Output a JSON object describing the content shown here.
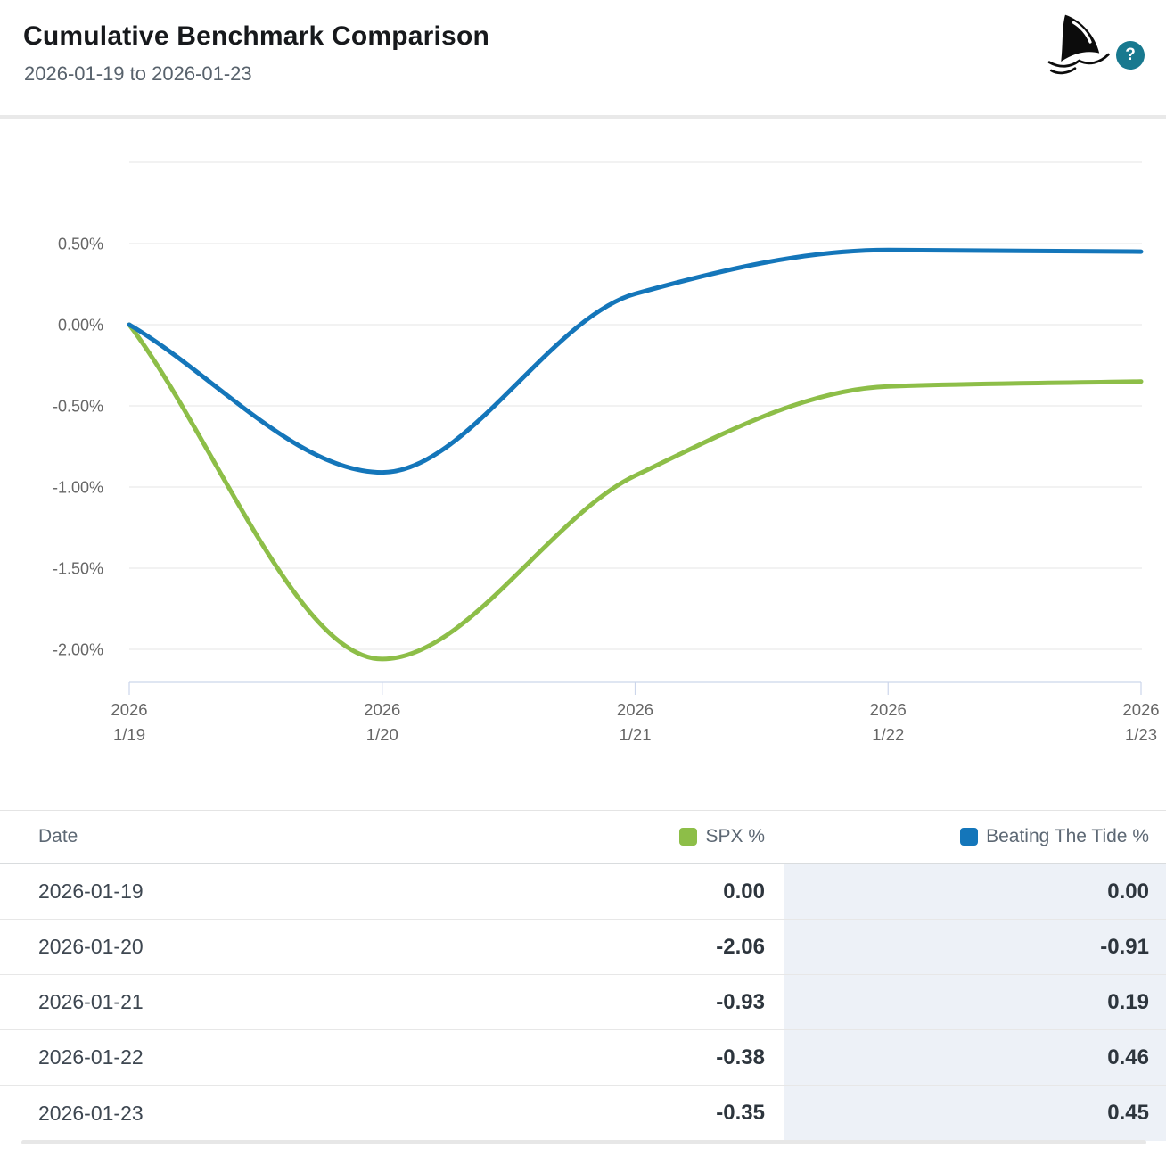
{
  "header": {
    "title": "Cumulative Benchmark Comparison",
    "subtitle": "2026-01-19 to 2026-01-23",
    "logo": "shark-fin",
    "help": "?"
  },
  "chart_data": {
    "type": "line",
    "smooth": true,
    "grid": true,
    "legend_position": "table-header",
    "x_axis": {
      "categories": [
        [
          "2026",
          "1/19"
        ],
        [
          "2026",
          "1/20"
        ],
        [
          "2026",
          "1/21"
        ],
        [
          "2026",
          "1/22"
        ],
        [
          "2026",
          "1/23"
        ]
      ]
    },
    "y_axis": {
      "unit": "%",
      "min": -2.25,
      "max": 1.0,
      "ticks": [
        {
          "value": 1.0,
          "label": ""
        },
        {
          "value": 0.5,
          "label": "0.50%"
        },
        {
          "value": 0.0,
          "label": "0.00%"
        },
        {
          "value": -0.5,
          "label": "-0.50%"
        },
        {
          "value": -1.0,
          "label": "-1.00%"
        },
        {
          "value": -1.5,
          "label": "-1.50%"
        },
        {
          "value": -2.0,
          "label": "-2.00%"
        }
      ]
    },
    "series": [
      {
        "name": "SPX %",
        "color": "#8dbe48",
        "values": [
          0.0,
          -2.06,
          -0.93,
          -0.38,
          -0.35
        ]
      },
      {
        "name": "Beating The Tide %",
        "color": "#1476ba",
        "values": [
          0.0,
          -0.91,
          0.19,
          0.46,
          0.45
        ]
      }
    ]
  },
  "table": {
    "columns": {
      "date": "Date",
      "spx": "SPX %",
      "tide": "Beating The Tide %"
    },
    "rows": [
      {
        "date": "2026-01-19",
        "spx": "0.00",
        "tide": "0.00"
      },
      {
        "date": "2026-01-20",
        "spx": "-2.06",
        "tide": "-0.91"
      },
      {
        "date": "2026-01-21",
        "spx": "-0.93",
        "tide": "0.19"
      },
      {
        "date": "2026-01-22",
        "spx": "-0.38",
        "tide": "0.46"
      },
      {
        "date": "2026-01-23",
        "spx": "-0.35",
        "tide": "0.45"
      }
    ]
  },
  "colors": {
    "spx": "#8dbe48",
    "tide": "#1476ba",
    "help_bg": "#18798f",
    "grid_line": "#e6e6e6",
    "axis_line": "#ccd6eb",
    "axis_text": "#666666",
    "col3_bg": "#edf1f7"
  }
}
